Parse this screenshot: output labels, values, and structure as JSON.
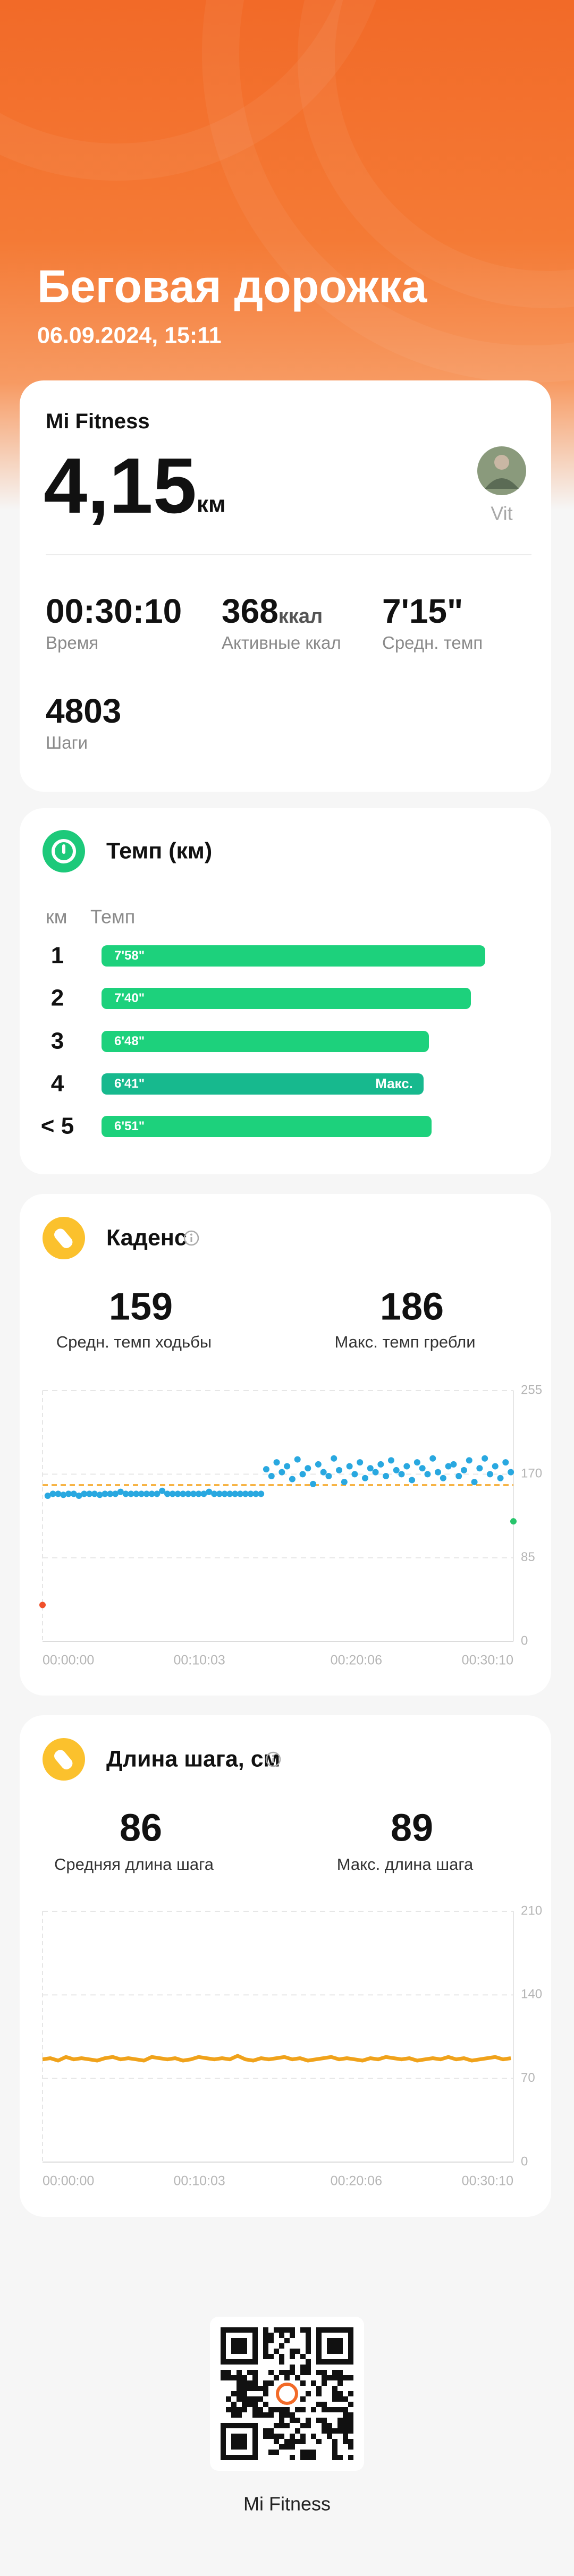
{
  "header": {
    "title": "Беговая дорожка",
    "datetime": "06.09.2024, 15:11"
  },
  "summary": {
    "source": "Mi Fitness",
    "distance": "4,15",
    "distance_unit": "км",
    "user": "Vit",
    "stats": [
      {
        "value": "00:30:10",
        "label": "Время"
      },
      {
        "value": 368,
        "unit": "ккал",
        "label": "Активные ккал"
      },
      {
        "value": "7'15\"",
        "label": "Средн. темп"
      },
      {
        "value": 4803,
        "label": "Шаги"
      }
    ]
  },
  "pace": {
    "title": "Темп (км)",
    "col_km": "км",
    "col_pace": "Темп",
    "rows": [
      {
        "km": "1",
        "pace": "7'58\""
      },
      {
        "km": "2",
        "pace": "7'40\""
      },
      {
        "km": "3",
        "pace": "6'48\""
      },
      {
        "km": "4",
        "pace": "6'41\"",
        "badge": "Макс."
      },
      {
        "km": "< 5",
        "pace": "6'51\""
      }
    ]
  },
  "cadence": {
    "title": "Каденс",
    "avg_value": 159,
    "avg_label": "Средн. темп ходьбы",
    "max_value": 186,
    "max_label": "Макс. темп гребли",
    "chart_data": {
      "type": "scatter",
      "xlim": [
        0,
        1810
      ],
      "ylim": [
        0,
        255
      ],
      "yticks": [
        0,
        85,
        170,
        255
      ],
      "xticks": [
        {
          "value": 0,
          "label": "00:00:00"
        },
        {
          "value": 603,
          "label": "00:10:03"
        },
        {
          "value": 1206,
          "label": "00:20:06"
        },
        {
          "value": 1810,
          "label": "00:30:10"
        }
      ],
      "average_color": "#f5a623",
      "series": [
        {
          "color": "#29a8e0",
          "x": [
            20,
            40,
            60,
            80,
            100,
            120,
            140,
            160,
            180,
            200,
            220,
            240,
            260,
            280,
            300,
            320,
            340,
            360,
            380,
            400,
            420,
            440,
            460,
            480,
            500,
            520,
            540,
            560,
            580,
            600,
            620,
            640,
            660,
            680,
            700,
            720,
            740,
            760,
            780,
            800,
            820,
            840,
            860,
            880,
            900,
            920,
            940,
            960,
            980,
            1000,
            1020,
            1040,
            1060,
            1080,
            1100,
            1120,
            1140,
            1160,
            1180,
            1200,
            1220,
            1240,
            1260,
            1280,
            1300,
            1320,
            1340,
            1360,
            1380,
            1400,
            1420,
            1440,
            1460,
            1480,
            1500,
            1520,
            1540,
            1560,
            1580,
            1600,
            1620,
            1640,
            1660,
            1680,
            1700,
            1720,
            1740,
            1760,
            1780,
            1800
          ],
          "values": [
            148,
            150,
            150,
            149,
            150,
            150,
            148,
            150,
            150,
            150,
            149,
            150,
            150,
            150,
            152,
            150,
            150,
            150,
            150,
            150,
            150,
            150,
            153,
            150,
            150,
            150,
            150,
            150,
            150,
            150,
            150,
            152,
            150,
            150,
            150,
            150,
            150,
            150,
            150,
            150,
            150,
            150,
            175,
            168,
            182,
            172,
            178,
            165,
            185,
            170,
            176,
            160,
            180,
            172,
            168,
            186,
            174,
            162,
            178,
            170,
            182,
            166,
            176,
            172,
            180,
            168,
            184,
            174,
            170,
            178,
            164,
            182,
            176,
            170,
            186,
            172,
            166,
            178,
            180,
            168,
            174,
            184,
            162,
            176,
            186,
            170,
            178,
            166,
            182,
            172
          ]
        },
        {
          "color": "#f0502a",
          "x": [
            0
          ],
          "values": [
            37
          ]
        },
        {
          "color": "#27c46b",
          "x": [
            1810
          ],
          "values": [
            122
          ]
        }
      ]
    }
  },
  "stride": {
    "title": "Длина шага, см",
    "avg_value": 86,
    "avg_label": "Средняя длина шага",
    "max_value": 89,
    "max_label": "Макс. длина шага",
    "chart_data": {
      "type": "line",
      "xlim": [
        0,
        1810
      ],
      "ylim": [
        0,
        210
      ],
      "yticks": [
        0,
        70,
        140,
        210
      ],
      "xticks": [
        {
          "value": 0,
          "label": "00:00:00"
        },
        {
          "value": 603,
          "label": "00:10:03"
        },
        {
          "value": 1206,
          "label": "00:20:06"
        },
        {
          "value": 1810,
          "label": "00:30:10"
        }
      ],
      "series": [
        {
          "color": "#f0a21a",
          "x": [
            0,
            30,
            60,
            90,
            120,
            150,
            180,
            210,
            240,
            270,
            300,
            330,
            360,
            390,
            420,
            450,
            480,
            510,
            540,
            570,
            600,
            630,
            660,
            690,
            720,
            750,
            780,
            810,
            840,
            870,
            900,
            930,
            960,
            990,
            1020,
            1050,
            1080,
            1110,
            1140,
            1170,
            1200,
            1230,
            1260,
            1290,
            1320,
            1350,
            1380,
            1410,
            1440,
            1470,
            1500,
            1530,
            1560,
            1590,
            1620,
            1650,
            1680,
            1710,
            1740,
            1770,
            1800
          ],
          "values": [
            86,
            87,
            85,
            88,
            86,
            87,
            86,
            85,
            87,
            88,
            86,
            87,
            86,
            85,
            88,
            87,
            86,
            87,
            85,
            86,
            88,
            87,
            86,
            87,
            86,
            89,
            86,
            85,
            87,
            86,
            87,
            88,
            86,
            87,
            85,
            86,
            87,
            88,
            86,
            87,
            86,
            85,
            87,
            86,
            88,
            87,
            86,
            87,
            85,
            86,
            87,
            86,
            88,
            86,
            87,
            85,
            86,
            87,
            88,
            86,
            87
          ]
        }
      ]
    }
  },
  "footer": {
    "label": "Mi Fitness"
  }
}
